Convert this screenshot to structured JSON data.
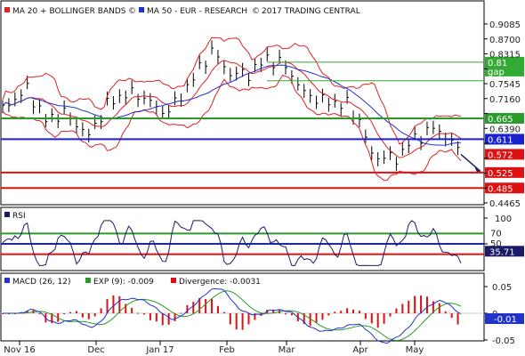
{
  "chart_data": [
    {
      "type": "line",
      "panel": "price",
      "legend": [
        {
          "name": "MA 20 + BOLLINGER BANDS",
          "color": "#dd2222",
          "icon": "copyright-icon"
        },
        {
          "name": "MA 50 - EUR - RESEARCH",
          "color": "#2233cc",
          "icon": "copyright-icon"
        }
      ],
      "copyright": "2017 TRADING CENTRAL",
      "y_ticks": [
        "0.9085",
        "0.8700",
        "0.8315",
        "0.7930",
        "0.7545",
        "0.7160",
        "0.6775",
        "0.6390",
        "0.6005",
        "0.5620",
        "0.5235",
        "0.4850",
        "0.4465"
      ],
      "ylim": [
        0.4465,
        0.9085
      ],
      "x_ticks": [
        "Nov 16",
        "Dec",
        "Jan 17",
        "Feb",
        "Mar",
        "Apr",
        "May"
      ],
      "levels": [
        {
          "value": 0.81,
          "label": "0.81",
          "sublabel": "gap",
          "color": "#33aa33",
          "style": "thin"
        },
        {
          "value": 0.762,
          "label": "",
          "color": "#33aa33",
          "style": "thin"
        },
        {
          "value": 0.665,
          "label": "0.665",
          "color": "#2a9a2a",
          "style": "thick"
        },
        {
          "value": 0.611,
          "label": "0.611",
          "color": "#1a22cc",
          "style": "thick"
        },
        {
          "value": 0.572,
          "label": "0.572",
          "color": "#dd1111",
          "style": "badge"
        },
        {
          "value": 0.525,
          "label": "0.525",
          "color": "#dd1111",
          "style": "thick"
        },
        {
          "value": 0.485,
          "label": "0.485",
          "color": "#dd1111",
          "style": "thick"
        }
      ],
      "forecast_arrow": {
        "from": 0.572,
        "to": 0.528
      }
    },
    {
      "type": "line",
      "panel": "rsi",
      "legend": [
        {
          "name": "RSI",
          "color": "#1a1a66"
        }
      ],
      "y_ticks": [
        "100",
        "50"
      ],
      "ylim": [
        0,
        100
      ],
      "levels": [
        {
          "value": 70,
          "label": "70",
          "color": "#2a9a2a"
        },
        {
          "value": 50,
          "label": "50",
          "color": "#1a22cc"
        },
        {
          "value": 30,
          "label": "",
          "color": "#dd1111"
        }
      ],
      "current": "35.71"
    },
    {
      "type": "line",
      "panel": "macd",
      "legend": [
        {
          "name": "MACD (26, 12)",
          "color": "#2233cc"
        },
        {
          "name": "EXP (9): -0.009",
          "color": "#2a9a2a"
        },
        {
          "name": "Divergence: -0.0031",
          "color": "#dd1111"
        }
      ],
      "y_ticks": [
        "0.05",
        "0",
        "-0.05"
      ],
      "ylim": [
        -0.05,
        0.05
      ],
      "current": "-0.01"
    }
  ]
}
